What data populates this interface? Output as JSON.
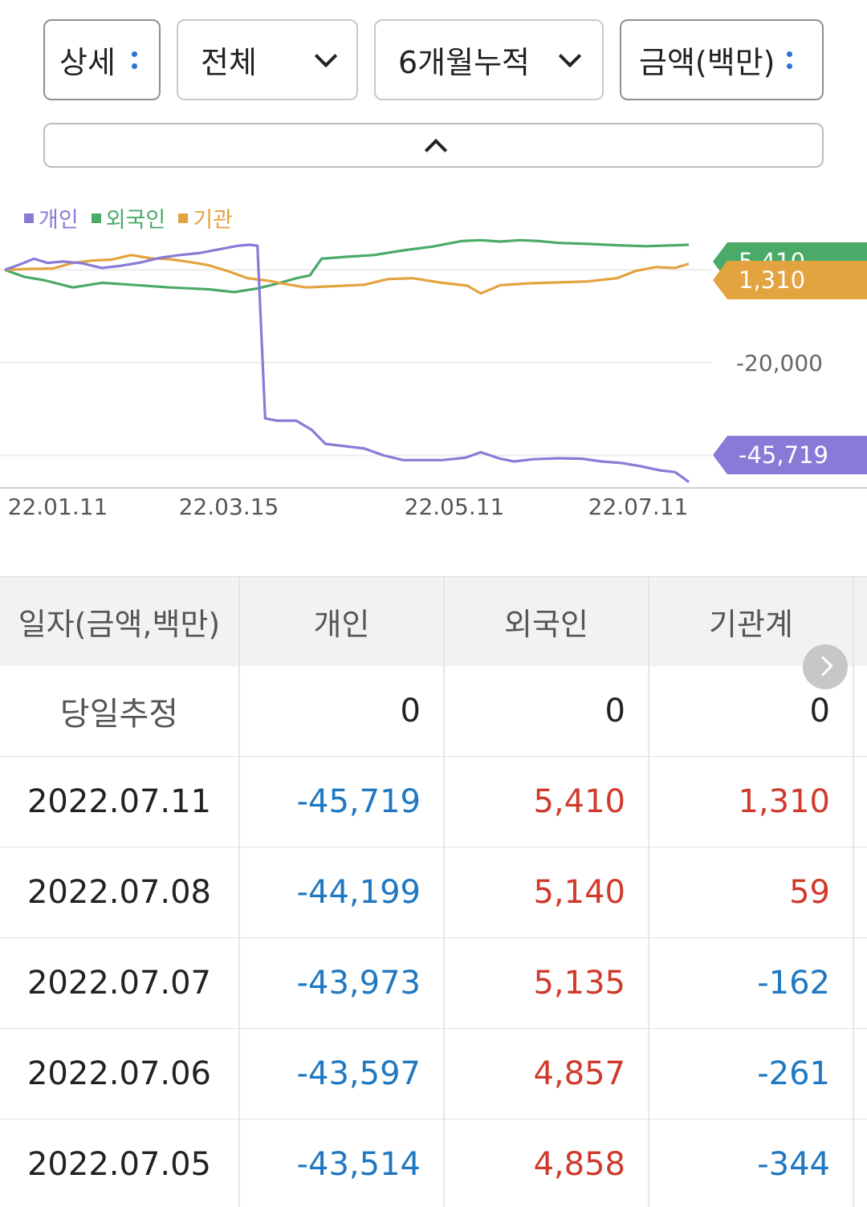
{
  "filters": {
    "detail": "상세",
    "scope": "전체",
    "period": "6개월누적",
    "unit": "금액(백만)"
  },
  "legend": [
    {
      "label": "개인",
      "color": "#8a7ad8"
    },
    {
      "label": "외국인",
      "color": "#4aaa68"
    },
    {
      "label": "기관",
      "color": "#e3a33e"
    }
  ],
  "chart_data": {
    "type": "line",
    "x_tick_labels": [
      "22.01.11",
      "22.03.15",
      "22.05.11",
      "22.07.11"
    ],
    "y_tick_labels": [
      "-20,000"
    ],
    "gridlines": [
      0,
      -20000,
      -40000
    ],
    "ylim": [
      -47000,
      8000
    ],
    "series": [
      {
        "name": "개인",
        "color": "#8a7ad8",
        "points": [
          [
            0,
            0
          ],
          [
            8,
            1200
          ],
          [
            15,
            2400
          ],
          [
            22,
            1500
          ],
          [
            30,
            1800
          ],
          [
            40,
            1400
          ],
          [
            50,
            400
          ],
          [
            60,
            900
          ],
          [
            70,
            1600
          ],
          [
            80,
            2600
          ],
          [
            90,
            3200
          ],
          [
            100,
            3600
          ],
          [
            110,
            4400
          ],
          [
            120,
            5200
          ],
          [
            126,
            5400
          ],
          [
            130,
            5200
          ],
          [
            134,
            -32000
          ],
          [
            140,
            -32500
          ],
          [
            150,
            -32500
          ],
          [
            158,
            -34500
          ],
          [
            165,
            -37500
          ],
          [
            175,
            -38000
          ],
          [
            185,
            -38500
          ],
          [
            195,
            -40000
          ],
          [
            205,
            -41000
          ],
          [
            215,
            -41000
          ],
          [
            225,
            -41000
          ],
          [
            237,
            -40500
          ],
          [
            245,
            -39300
          ],
          [
            255,
            -40700
          ],
          [
            262,
            -41300
          ],
          [
            272,
            -40800
          ],
          [
            285,
            -40600
          ],
          [
            297,
            -40700
          ],
          [
            307,
            -41300
          ],
          [
            317,
            -41600
          ],
          [
            327,
            -42300
          ],
          [
            337,
            -43200
          ],
          [
            345,
            -43600
          ],
          [
            352,
            -45719
          ]
        ],
        "label": "-45,719",
        "label_color": "#8a7ad8"
      },
      {
        "name": "외국인",
        "color": "#4aaa68",
        "points": [
          [
            0,
            0
          ],
          [
            10,
            -1500
          ],
          [
            20,
            -2200
          ],
          [
            35,
            -3800
          ],
          [
            50,
            -2800
          ],
          [
            65,
            -3200
          ],
          [
            85,
            -3800
          ],
          [
            105,
            -4200
          ],
          [
            118,
            -4800
          ],
          [
            130,
            -4000
          ],
          [
            140,
            -3000
          ],
          [
            150,
            -1800
          ],
          [
            157,
            -1200
          ],
          [
            163,
            2400
          ],
          [
            175,
            2800
          ],
          [
            190,
            3200
          ],
          [
            205,
            4200
          ],
          [
            220,
            5000
          ],
          [
            235,
            6200
          ],
          [
            245,
            6400
          ],
          [
            255,
            6100
          ],
          [
            265,
            6400
          ],
          [
            275,
            6200
          ],
          [
            285,
            5800
          ],
          [
            300,
            5600
          ],
          [
            315,
            5300
          ],
          [
            330,
            5100
          ],
          [
            345,
            5300
          ],
          [
            352,
            5410
          ]
        ],
        "label": "5,410",
        "label_color": "#4aaa68"
      },
      {
        "name": "기관",
        "color": "#e3a33e",
        "points": [
          [
            0,
            0
          ],
          [
            12,
            200
          ],
          [
            25,
            300
          ],
          [
            35,
            1500
          ],
          [
            45,
            2000
          ],
          [
            55,
            2200
          ],
          [
            65,
            3200
          ],
          [
            75,
            2500
          ],
          [
            85,
            2300
          ],
          [
            95,
            1700
          ],
          [
            105,
            1000
          ],
          [
            115,
            -300
          ],
          [
            125,
            -1800
          ],
          [
            135,
            -2300
          ],
          [
            145,
            -3100
          ],
          [
            155,
            -3800
          ],
          [
            170,
            -3500
          ],
          [
            185,
            -3200
          ],
          [
            197,
            -2000
          ],
          [
            210,
            -1800
          ],
          [
            225,
            -2800
          ],
          [
            238,
            -3400
          ],
          [
            245,
            -5100
          ],
          [
            255,
            -3300
          ],
          [
            270,
            -2900
          ],
          [
            285,
            -2700
          ],
          [
            300,
            -2500
          ],
          [
            315,
            -1800
          ],
          [
            325,
            -200
          ],
          [
            335,
            600
          ],
          [
            345,
            400
          ],
          [
            352,
            1310
          ]
        ],
        "label": "1,310",
        "label_color": "#e3a33e"
      }
    ],
    "xlabel": "",
    "ylabel": ""
  },
  "table": {
    "headers": [
      "일자(금액,백만)",
      "개인",
      "외국인",
      "기관계"
    ],
    "today": {
      "label": "당일추정",
      "values": [
        "0",
        "0",
        "0"
      ]
    },
    "rows": [
      {
        "date": "2022.07.11",
        "individual": "-45,719",
        "foreign": "5,410",
        "institution": "1,310"
      },
      {
        "date": "2022.07.08",
        "individual": "-44,199",
        "foreign": "5,140",
        "institution": "59"
      },
      {
        "date": "2022.07.07",
        "individual": "-43,973",
        "foreign": "5,135",
        "institution": "-162"
      },
      {
        "date": "2022.07.06",
        "individual": "-43,597",
        "foreign": "4,857",
        "institution": "-261"
      },
      {
        "date": "2022.07.05",
        "individual": "-43,514",
        "foreign": "4,858",
        "institution": "-344"
      }
    ]
  }
}
